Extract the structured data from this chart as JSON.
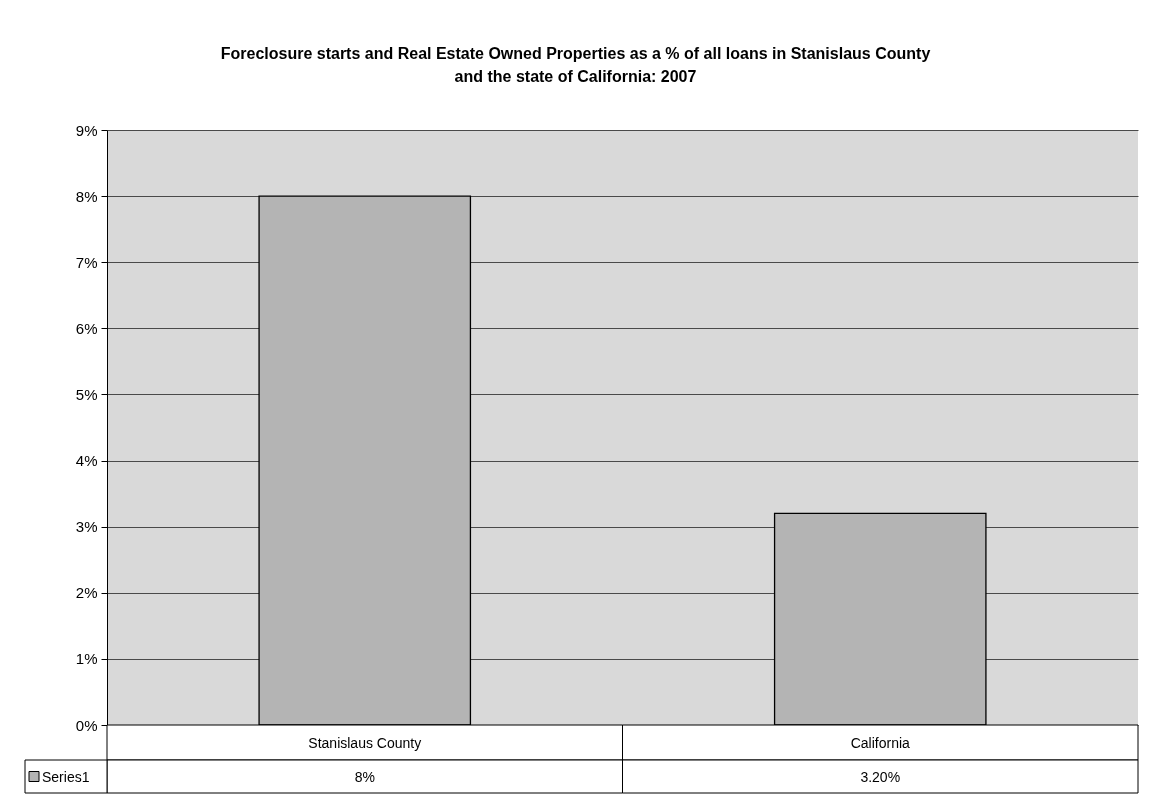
{
  "chart_data": {
    "type": "bar",
    "title": "Foreclosure starts and Real Estate Owned Properties as a % of all loans in Stanislaus County and the state of California: 2007",
    "categories": [
      "Stanislaus County",
      "California"
    ],
    "series": [
      {
        "name": "Series1",
        "color": "#b4b4b4",
        "values": [
          8,
          3.2
        ],
        "value_labels": [
          "8%",
          "3.20%"
        ]
      }
    ],
    "ylim": [
      0,
      9
    ],
    "yticks": [
      {
        "value": 0,
        "label": "0%"
      },
      {
        "value": 1,
        "label": "1%"
      },
      {
        "value": 2,
        "label": "2%"
      },
      {
        "value": 3,
        "label": "3%"
      },
      {
        "value": 4,
        "label": "4%"
      },
      {
        "value": 5,
        "label": "5%"
      },
      {
        "value": 6,
        "label": "6%"
      },
      {
        "value": 7,
        "label": "7%"
      },
      {
        "value": 8,
        "label": "8%"
      },
      {
        "value": 9,
        "label": "9%"
      }
    ],
    "grid": "y",
    "legend": "bottom left"
  }
}
